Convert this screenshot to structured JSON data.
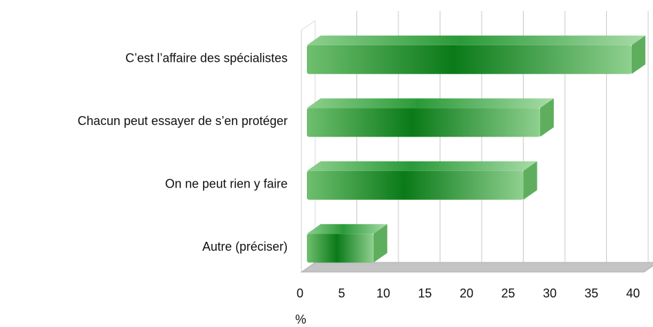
{
  "chart_data": {
    "type": "bar3d_horizontal",
    "categories": [
      "C’est l’affaire des spécialistes",
      "Chacun peut essayer de s’en protéger",
      "On ne peut rien y faire",
      "Autre (préciser)"
    ],
    "values": [
      39,
      28,
      26,
      8
    ],
    "color": "#138a22",
    "xlabel": "%",
    "xlim": [
      0,
      40
    ],
    "xticks": [
      0,
      5,
      10,
      15,
      20,
      25,
      30,
      35,
      40
    ],
    "grid": true
  }
}
